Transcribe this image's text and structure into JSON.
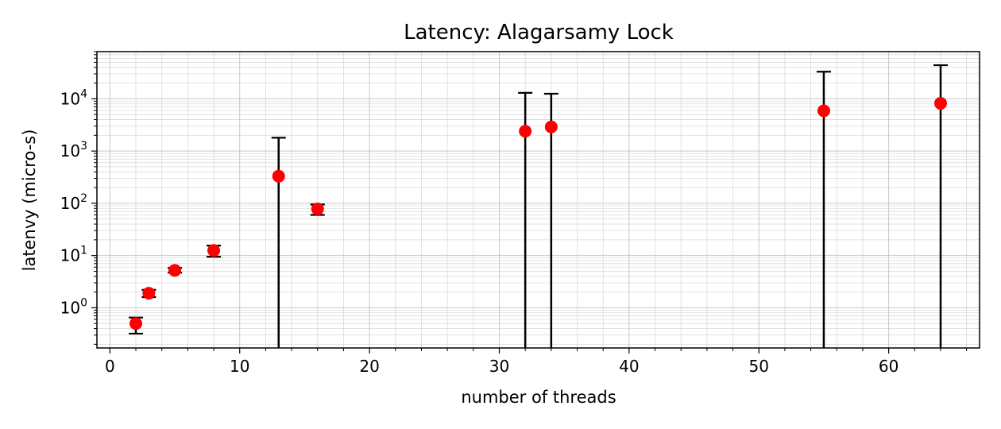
{
  "chart_data": {
    "type": "scatter",
    "title": "Latency: Alagarsamy Lock",
    "xlabel": "number of threads",
    "ylabel": "latenvy (micro-s)",
    "xscale": "linear",
    "yscale": "log",
    "xlim": [
      -1,
      67
    ],
    "ylim": [
      0.17,
      80000
    ],
    "x_ticks": [
      0,
      10,
      20,
      30,
      40,
      50,
      60
    ],
    "y_ticks": [
      {
        "value": 1,
        "base": "10",
        "exp": "0"
      },
      {
        "value": 10,
        "base": "10",
        "exp": "1"
      },
      {
        "value": 100,
        "base": "10",
        "exp": "2"
      },
      {
        "value": 1000,
        "base": "10",
        "exp": "3"
      },
      {
        "value": 10000,
        "base": "10",
        "exp": "4"
      }
    ],
    "grid": true,
    "marker_color": "#ff0000",
    "errorbar_color": "#000000",
    "points": [
      {
        "x": 2,
        "y": 0.5,
        "lower": 0.32,
        "upper": 0.65
      },
      {
        "x": 3,
        "y": 1.9,
        "lower": 1.6,
        "upper": 2.2
      },
      {
        "x": 5,
        "y": 5.2,
        "lower": 4.7,
        "upper": 5.8
      },
      {
        "x": 8,
        "y": 12.5,
        "lower": 9.5,
        "upper": 15.5
      },
      {
        "x": 13,
        "y": 330,
        "lower": 0.17,
        "upper": 1800
      },
      {
        "x": 16,
        "y": 78,
        "lower": 60,
        "upper": 95
      },
      {
        "x": 32,
        "y": 2400,
        "lower": 0.17,
        "upper": 13000
      },
      {
        "x": 34,
        "y": 2900,
        "lower": 0.17,
        "upper": 12500
      },
      {
        "x": 55,
        "y": 5900,
        "lower": 0.17,
        "upper": 33000
      },
      {
        "x": 64,
        "y": 8200,
        "lower": 0.17,
        "upper": 44000
      }
    ]
  }
}
